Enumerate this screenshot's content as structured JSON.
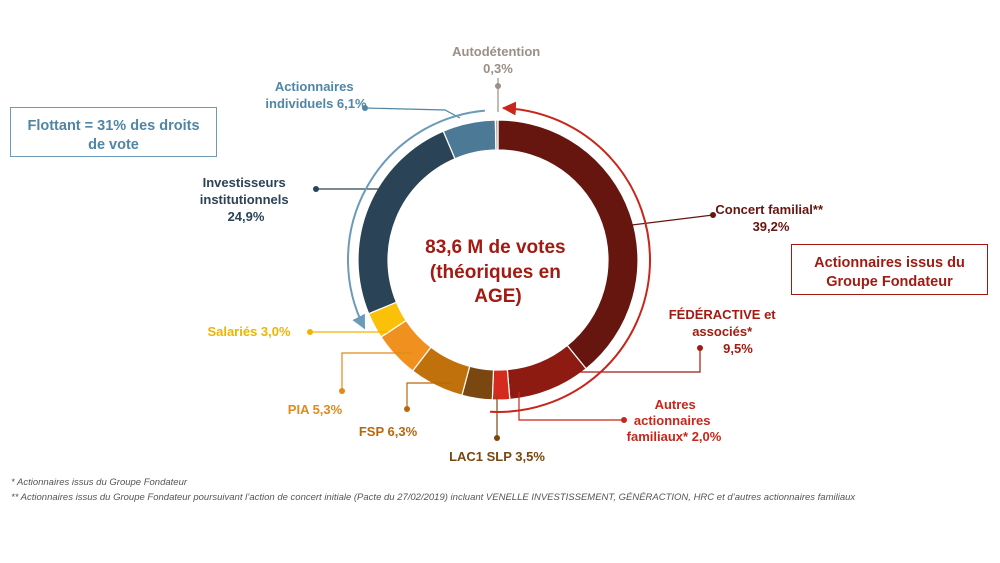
{
  "chart_data": {
    "type": "pie",
    "variant": "donut",
    "center_text": [
      "83,6 M de votes",
      "(théoriques en",
      "AGE)"
    ],
    "slices": [
      {
        "name": "Concert familial**",
        "value_label": "39,2%",
        "value": 39.2,
        "color": "#66150f"
      },
      {
        "name": "FÉDÉRACTIVE et associés*",
        "value_label": "9,5%",
        "value": 9.5,
        "color": "#8e1b12"
      },
      {
        "name": "Autres actionnaires familiaux*",
        "value_label": "2,0%",
        "value": 2.0,
        "color": "#d42b1e"
      },
      {
        "name": "LAC1 SLP",
        "value_label": "3,5%",
        "value": 3.5,
        "color": "#7a4710"
      },
      {
        "name": "FSP",
        "value_label": "6,3%",
        "value": 6.3,
        "color": "#c0710c"
      },
      {
        "name": "PIA",
        "value_label": "5,3%",
        "value": 5.3,
        "color": "#f0911f"
      },
      {
        "name": "Salariés",
        "value_label": "3,0%",
        "value": 3.0,
        "color": "#fbc108"
      },
      {
        "name": "Investisseurs institutionnels",
        "value_label": "24,9%",
        "value": 24.9,
        "color": "#2b4356"
      },
      {
        "name": "Actionnaires individuels",
        "value_label": "6,1%",
        "value": 6.1,
        "color": "#4c7a96"
      },
      {
        "name": "Autodétention",
        "value_label": "0,3%",
        "value": 0.3,
        "color": "#b5a79d"
      }
    ],
    "labels": {
      "autodetention": [
        "Autodétention",
        "0,3%"
      ],
      "individuels": [
        "Actionnaires",
        "individuels 6,1%"
      ],
      "institutionnels": [
        "Investisseurs",
        "institutionnels",
        "24,9%"
      ],
      "concert": [
        "Concert familial**",
        "39,2%"
      ],
      "federactive": [
        "FÉDÉRACTIVE et",
        "associés*",
        "9,5%"
      ],
      "autres": [
        "Autres",
        "actionnaires",
        "familiaux* 2,0%"
      ],
      "lac1": "LAC1 SLP 3,5%",
      "fsp": "FSP 6,3%",
      "pia": "PIA 5,3%",
      "salaries": "Salariés 3,0%"
    },
    "label_colors": {
      "grey": "#9b8f86",
      "blue_dark": "#2b4356",
      "blue": "#4f86a6",
      "red_dark": "#66150f",
      "red": "#a11b12",
      "red_light": "#c8261b",
      "brown": "#7a4710",
      "orange_dark": "#b8680a",
      "orange": "#e08a18",
      "yellow": "#f0b400"
    }
  },
  "boxes": {
    "flottant": [
      "Flottant = 31% des droits",
      "de vote"
    ],
    "fondateur": [
      "Actionnaires issus du",
      "Groupe Fondateur"
    ]
  },
  "footnotes": {
    "note1": "*  Actionnaires issus du Groupe Fondateur",
    "note2": "** Actionnaires issus du Groupe Fondateur poursuivant l’action de concert initiale (Pacte du 27/02/2019)  incluant VENELLE INVESTISSEMENT, GÉNÉRACTION, HRC et d’autres actionnaires familiaux"
  }
}
